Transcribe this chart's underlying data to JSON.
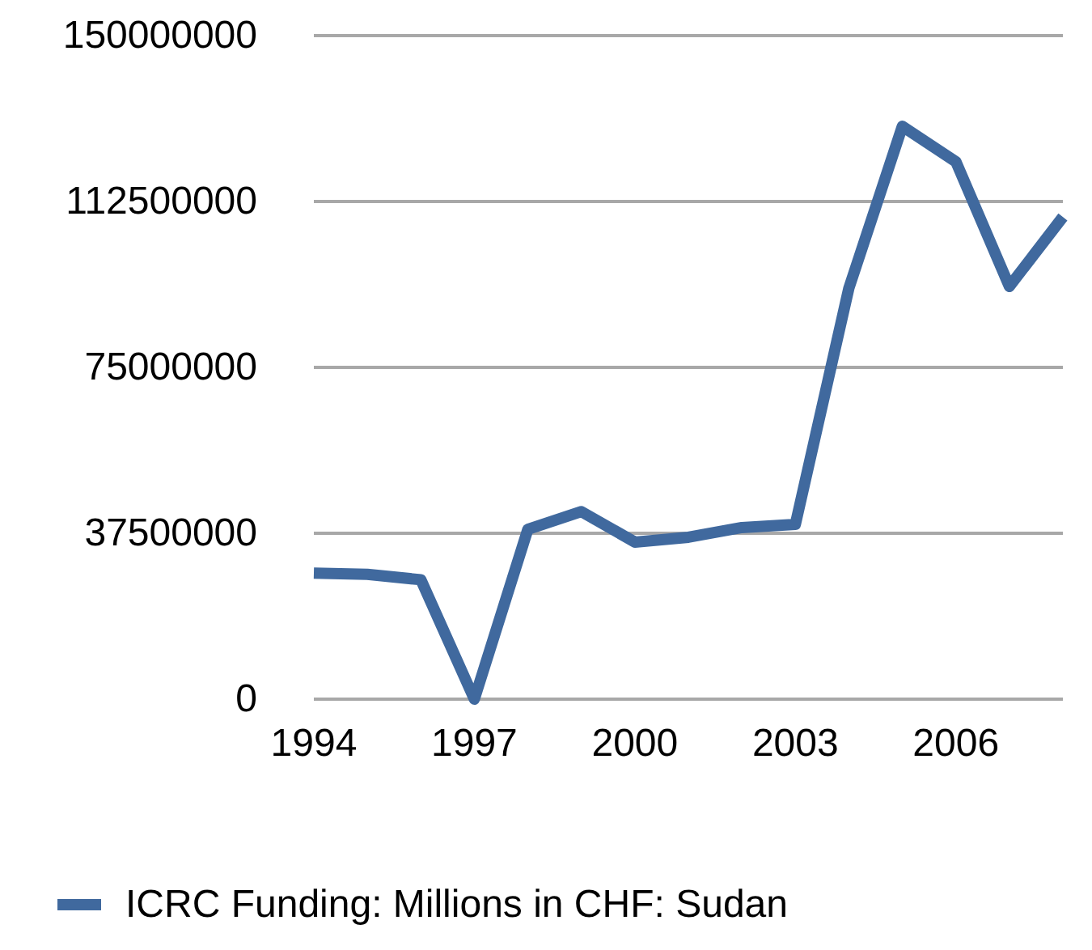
{
  "chart_data": {
    "type": "line",
    "x": [
      1994,
      1995,
      1996,
      1997,
      1998,
      1999,
      2000,
      2001,
      2002,
      2003,
      2004,
      2005,
      2006,
      2007,
      2008
    ],
    "series": [
      {
        "name": "ICRC Funding: Millions in CHF: Sudan",
        "color": "#40699e",
        "values": [
          28500000,
          28200000,
          27000000,
          0,
          38400000,
          42400000,
          35500000,
          36600000,
          38800000,
          39500000,
          92900000,
          129500000,
          121500000,
          93300000,
          109000000
        ]
      }
    ],
    "xlim": [
      1994,
      2008
    ],
    "xticks": [
      1994,
      1997,
      2000,
      2003,
      2006
    ],
    "ylim": [
      0,
      150000000
    ],
    "yticks": [
      0,
      37500000,
      75000000,
      112500000,
      150000000
    ],
    "grid": "y",
    "legend": "bottom",
    "marker": "none",
    "line_style": "solid"
  }
}
